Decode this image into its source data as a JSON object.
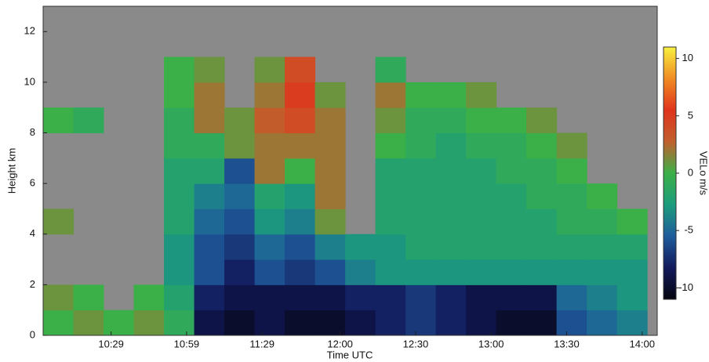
{
  "chart_data": {
    "type": "heatmap",
    "x_label": "Time UTC",
    "y_label": "Height km",
    "colorbar_label": "VELo m/s",
    "xlim": [
      602,
      846
    ],
    "xticks": [
      {
        "value": 629,
        "label": "10:29"
      },
      {
        "value": 659,
        "label": "10:59"
      },
      {
        "value": 689,
        "label": "11:29"
      },
      {
        "value": 720,
        "label": "12:00"
      },
      {
        "value": 750,
        "label": "12:30"
      },
      {
        "value": 780,
        "label": "13:00"
      },
      {
        "value": 810,
        "label": "13:30"
      },
      {
        "value": 840,
        "label": "14:00"
      }
    ],
    "ylim": [
      0,
      13
    ],
    "yticks": [
      0,
      2,
      4,
      6,
      8,
      10,
      12
    ],
    "clim": [
      -11,
      11
    ],
    "cticks": [
      -10,
      -5,
      0,
      5,
      10
    ],
    "colormap": [
      "#05050f",
      "#121a5c",
      "#1f5c9c",
      "#1c9c7c",
      "#3cb048",
      "#c0602c",
      "#e0341c",
      "#f08c24",
      "#f8f040"
    ],
    "background": "#8a8a8a",
    "xbins": [
      602,
      614,
      626,
      638,
      650,
      662,
      674,
      686,
      698,
      710,
      722,
      734,
      746,
      758,
      770,
      782,
      794,
      806,
      818,
      830,
      842
    ],
    "ybins": [
      0,
      1,
      2,
      3,
      4,
      5,
      6,
      7,
      8,
      9,
      10,
      11
    ],
    "values": [
      [
        0,
        1,
        0,
        1,
        -1,
        -9,
        -10,
        -9,
        -10,
        -10,
        -9,
        -8,
        -7,
        -8,
        -9,
        -10,
        -10,
        -6,
        -5,
        -4
      ],
      [
        1,
        0,
        null,
        0,
        -2,
        -8,
        -9,
        -9,
        -9,
        -9,
        -8,
        -8,
        -7,
        -8,
        -9,
        -9,
        -9,
        -5,
        -4,
        -3
      ],
      [
        null,
        null,
        null,
        null,
        -3,
        -6,
        -8,
        -6,
        -7,
        -6,
        -4,
        -3,
        -3,
        -3,
        -3,
        -3,
        -3,
        -3,
        -3,
        -3
      ],
      [
        null,
        null,
        null,
        null,
        -3,
        -6,
        -7,
        -5,
        -6,
        -4,
        -3,
        -3,
        -2,
        -2,
        -2,
        -2,
        -2,
        -2,
        -2,
        -2
      ],
      [
        1,
        null,
        null,
        null,
        -2,
        -5,
        -6,
        -3,
        -4,
        1,
        null,
        -2,
        -2,
        -2,
        -2,
        -2,
        -2,
        -1,
        -1,
        0
      ],
      [
        null,
        null,
        null,
        null,
        -2,
        -4,
        -5,
        -2,
        -3,
        2,
        null,
        -2,
        -2,
        -2,
        -2,
        -2,
        -1,
        -1,
        0,
        null
      ],
      [
        null,
        null,
        null,
        null,
        -2,
        -2,
        -6,
        2,
        0,
        2,
        null,
        -2,
        -2,
        -2,
        -2,
        -1,
        -1,
        0,
        null,
        null
      ],
      [
        null,
        null,
        null,
        null,
        -1,
        -1,
        1,
        2,
        2,
        2,
        null,
        0,
        -1,
        -2,
        -1,
        -1,
        0,
        1,
        null,
        null
      ],
      [
        0,
        -1,
        null,
        null,
        -1,
        2,
        1,
        3,
        4,
        2,
        null,
        1,
        -1,
        -1,
        0,
        0,
        1,
        null,
        null,
        null
      ],
      [
        null,
        null,
        null,
        null,
        0,
        2,
        null,
        2,
        5,
        1,
        null,
        2,
        0,
        0,
        1,
        null,
        null,
        null,
        null,
        null
      ],
      [
        null,
        null,
        null,
        null,
        0,
        1,
        null,
        1,
        4,
        null,
        null,
        -1,
        null,
        null,
        null,
        null,
        null,
        null,
        null,
        null
      ]
    ]
  }
}
